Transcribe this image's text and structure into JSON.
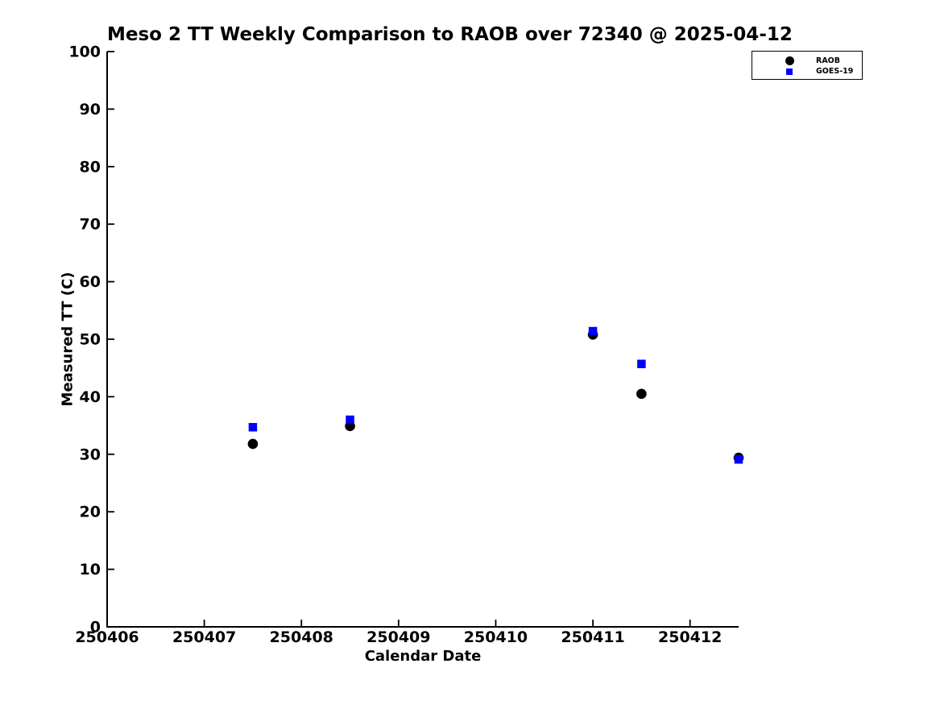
{
  "chart_data": {
    "type": "scatter",
    "title": "Meso 2 TT Weekly Comparison to RAOB over 72340 @ 2025-04-12",
    "xlabel": "Calendar Date",
    "ylabel": "Measured TT (C)",
    "xlim": [
      250406,
      250412.5
    ],
    "ylim": [
      0,
      100
    ],
    "xticks": [
      250406,
      250407,
      250408,
      250409,
      250410,
      250411,
      250412
    ],
    "yticks": [
      0,
      10,
      20,
      30,
      40,
      50,
      60,
      70,
      80,
      90,
      100
    ],
    "grid": false,
    "tick_direction": "in",
    "legend": {
      "position": "upper-right"
    },
    "series": [
      {
        "name": "RAOB",
        "marker": "circle",
        "color": "#000000",
        "points": [
          {
            "x": 250407.5,
            "y": 31.8
          },
          {
            "x": 250408.5,
            "y": 34.9
          },
          {
            "x": 250411.0,
            "y": 50.8
          },
          {
            "x": 250411.5,
            "y": 40.5
          },
          {
            "x": 250412.5,
            "y": 29.4
          }
        ]
      },
      {
        "name": "GOES-19",
        "marker": "square",
        "color": "#0000ff",
        "points": [
          {
            "x": 250407.5,
            "y": 34.7
          },
          {
            "x": 250408.5,
            "y": 36.0
          },
          {
            "x": 250411.0,
            "y": 51.4
          },
          {
            "x": 250411.5,
            "y": 45.7
          },
          {
            "x": 250412.5,
            "y": 29.1
          }
        ]
      }
    ]
  }
}
